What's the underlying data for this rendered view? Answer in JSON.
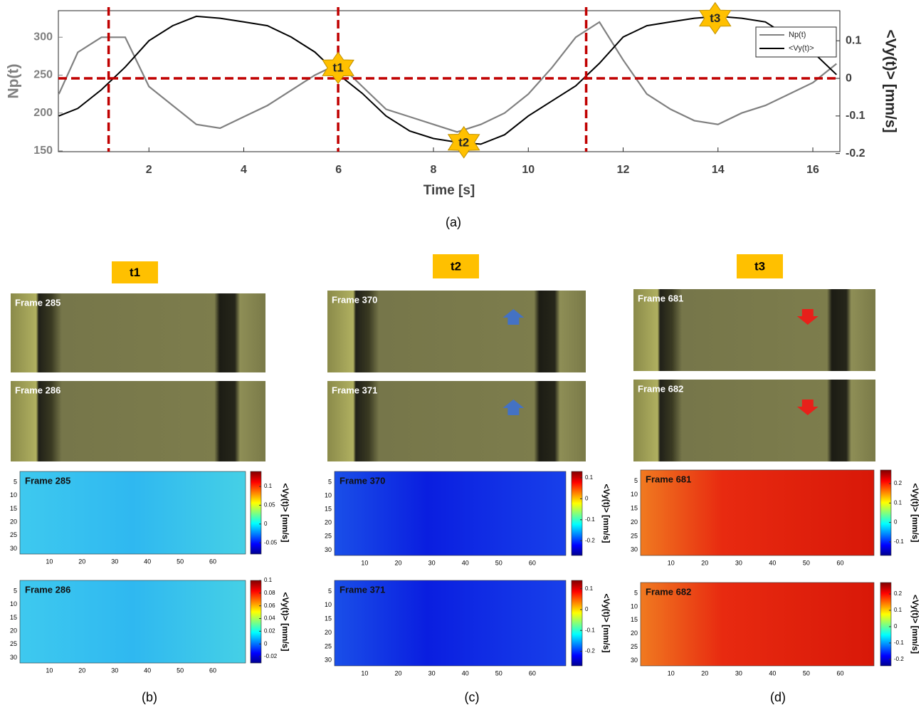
{
  "chart_data": [
    {
      "type": "line",
      "caption": "(a)",
      "xlabel": "Time [s]",
      "ylabel": "Np(t)",
      "y2label": "<Vy(t)> [mm/s]",
      "x": [
        0.1,
        0.5,
        1,
        1.5,
        2,
        2.5,
        3,
        3.5,
        4,
        4.5,
        5,
        5.5,
        6,
        6.5,
        7,
        7.5,
        8,
        8.5,
        9,
        9.5,
        10,
        10.5,
        11,
        11.5,
        12,
        12.5,
        13,
        13.5,
        14,
        14.5,
        15,
        15.5,
        16,
        16.5
      ],
      "series": [
        {
          "name": "Np(t)",
          "color": "#808080",
          "values": [
            225,
            280,
            300,
            300,
            235,
            210,
            185,
            180,
            195,
            210,
            230,
            250,
            265,
            235,
            205,
            195,
            185,
            175,
            185,
            200,
            225,
            260,
            300,
            320,
            270,
            225,
            205,
            190,
            185,
            200,
            210,
            225,
            240,
            265
          ]
        },
        {
          "name": "<Vy(t)>",
          "color": "#000000",
          "axis": "y2",
          "values": [
            -0.1,
            -0.08,
            -0.03,
            0.03,
            0.1,
            0.14,
            0.165,
            0.16,
            0.15,
            0.14,
            0.11,
            0.07,
            0.01,
            -0.04,
            -0.1,
            -0.14,
            -0.16,
            -0.17,
            -0.175,
            -0.15,
            -0.1,
            -0.06,
            -0.02,
            0.04,
            0.11,
            0.14,
            0.15,
            0.16,
            0.165,
            0.16,
            0.15,
            0.11,
            0.07,
            0.01
          ]
        }
      ],
      "xlim": [
        0.09,
        16.57
      ],
      "xticks": [
        2,
        4,
        6,
        8,
        10,
        12,
        14,
        16
      ],
      "ylim": [
        149,
        335
      ],
      "yticks": [
        150,
        200,
        250,
        300
      ],
      "y2lim": [
        -0.195,
        0.18
      ],
      "y2ticks": [
        -0.2,
        -0.1,
        0,
        0.1
      ],
      "vlines": [
        1.15,
        5.99,
        11.22
      ],
      "hlines_y2": [
        0
      ],
      "markers": [
        {
          "text": "t1",
          "x": 5.99,
          "y2": 0.028
        },
        {
          "text": "t2",
          "x": 8.64,
          "y2": -0.17
        },
        {
          "text": "t3",
          "x": 13.94,
          "y2": 0.16
        }
      ],
      "legend": "upper right"
    },
    {
      "type": "heatmap",
      "title": "Frame 285",
      "colorbar_label": "<Vy(t)> [mm/s]",
      "xlim": [
        1,
        70
      ],
      "xticks": [
        10,
        20,
        30,
        40,
        50,
        60
      ],
      "ylim": [
        1,
        32
      ],
      "yticks": [
        5,
        10,
        15,
        20,
        25,
        30
      ],
      "clim": [
        -0.08,
        0.14
      ],
      "cticks": [
        -0.05,
        0,
        0.05,
        0.1
      ]
    },
    {
      "type": "heatmap",
      "title": "Frame 286",
      "colorbar_label": "<Vy(t)> [mm/s]",
      "xlim": [
        1,
        70
      ],
      "xticks": [
        10,
        20,
        30,
        40,
        50,
        60
      ],
      "ylim": [
        1,
        32
      ],
      "yticks": [
        5,
        10,
        15,
        20,
        25,
        30
      ],
      "clim": [
        -0.03,
        0.1
      ],
      "cticks": [
        -0.02,
        0,
        0.02,
        0.04,
        0.06,
        0.08,
        0.1
      ]
    },
    {
      "type": "heatmap",
      "title": "Frame 370",
      "colorbar_label": "<Vy(t)> [mm/s]",
      "xlim": [
        1,
        70
      ],
      "xticks": [
        10,
        20,
        30,
        40,
        50,
        60
      ],
      "ylim": [
        1,
        32
      ],
      "yticks": [
        5,
        10,
        15,
        20,
        25,
        30
      ],
      "clim": [
        -0.27,
        0.13
      ],
      "cticks": [
        -0.2,
        -0.1,
        0,
        0.1
      ]
    },
    {
      "type": "heatmap",
      "title": "Frame 371",
      "colorbar_label": "<Vy(t)> [mm/s]",
      "xlim": [
        1,
        70
      ],
      "xticks": [
        10,
        20,
        30,
        40,
        50,
        60
      ],
      "ylim": [
        1,
        32
      ],
      "yticks": [
        5,
        10,
        15,
        20,
        25,
        30
      ],
      "clim": [
        -0.27,
        0.14
      ],
      "cticks": [
        -0.2,
        -0.1,
        0,
        0.1
      ]
    },
    {
      "type": "heatmap",
      "title": "Frame 681",
      "colorbar_label": "<Vy(t)> [mm/s]",
      "xlim": [
        1,
        70
      ],
      "xticks": [
        10,
        20,
        30,
        40,
        50,
        60
      ],
      "ylim": [
        1,
        32
      ],
      "yticks": [
        5,
        10,
        15,
        20,
        25,
        30
      ],
      "clim": [
        -0.17,
        0.27
      ],
      "cticks": [
        -0.1,
        0,
        0.1,
        0.2
      ]
    },
    {
      "type": "heatmap",
      "title": "Frame 682",
      "colorbar_label": "<Vy(t)> [mm/s]",
      "xlim": [
        1,
        70
      ],
      "xticks": [
        10,
        20,
        30,
        40,
        50,
        60
      ],
      "ylim": [
        1,
        32
      ],
      "yticks": [
        5,
        10,
        15,
        20,
        25,
        30
      ],
      "clim": [
        -0.24,
        0.27
      ],
      "cticks": [
        -0.2,
        -0.1,
        0,
        0.1,
        0.2
      ]
    }
  ],
  "panels": [
    {
      "caption": "(b)",
      "tag": "t1",
      "frames": [
        "Frame 285",
        "Frame 286"
      ]
    },
    {
      "caption": "(c)",
      "tag": "t2",
      "frames": [
        "Frame 370",
        "Frame 371"
      ]
    },
    {
      "caption": "(d)",
      "tag": "t3",
      "frames": [
        "Frame 681",
        "Frame 682"
      ]
    }
  ]
}
